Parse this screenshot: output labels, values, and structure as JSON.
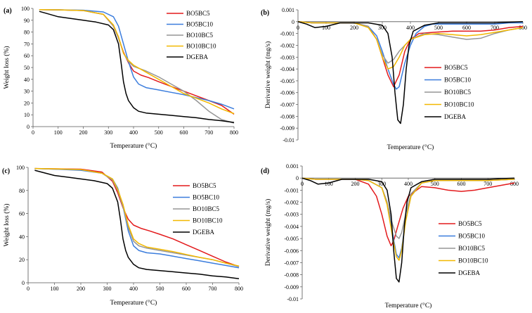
{
  "chart_data": [
    {
      "panel_label": "(a)",
      "type": "line",
      "xlabel": "Temperature (°C)",
      "ylabel": "Weight loss (%)",
      "xlim": [
        0,
        800
      ],
      "ylim": [
        0,
        100
      ],
      "xticks": [
        "0",
        "100",
        "200",
        "300",
        "400",
        "500",
        "600",
        "700",
        "800"
      ],
      "yticks": [
        "0",
        "10",
        "20",
        "30",
        "40",
        "50",
        "60",
        "70",
        "80",
        "90",
        "100"
      ],
      "legend_position": "right",
      "series": [
        {
          "name": "BO5BC5",
          "color": "#e31a1c",
          "x": [
            25,
            100,
            200,
            280,
            320,
            340,
            360,
            380,
            400,
            430,
            460,
            500,
            550,
            600,
            650,
            700,
            750,
            800
          ],
          "y": [
            99,
            98.8,
            98.2,
            95,
            85,
            75,
            63,
            54,
            47,
            43.5,
            41.5,
            38,
            34,
            30,
            26,
            22,
            18,
            10.5
          ]
        },
        {
          "name": "BO5BC10",
          "color": "#3b7ddd",
          "x": [
            25,
            100,
            200,
            280,
            320,
            340,
            360,
            380,
            400,
            420,
            450,
            500,
            550,
            600,
            650,
            700,
            750,
            800
          ],
          "y": [
            99,
            98.8,
            98.5,
            97,
            93,
            85,
            70,
            55,
            42,
            36,
            33,
            31,
            29,
            27,
            24.5,
            22,
            19,
            15
          ]
        },
        {
          "name": "BO10BC5",
          "color": "#969696",
          "x": [
            25,
            100,
            200,
            280,
            320,
            340,
            360,
            380,
            400,
            450,
            500,
            550,
            600,
            650,
            700,
            750,
            800
          ],
          "y": [
            99,
            98.8,
            98.2,
            95,
            85,
            75,
            62,
            55,
            51,
            47,
            42,
            36,
            30,
            22,
            13,
            6,
            3
          ]
        },
        {
          "name": "BO10BC10",
          "color": "#f2b800",
          "x": [
            25,
            100,
            200,
            280,
            320,
            340,
            360,
            380,
            400,
            450,
            500,
            550,
            600,
            650,
            700,
            750,
            800
          ],
          "y": [
            99,
            98.8,
            98.2,
            95,
            86,
            76,
            62,
            56,
            52,
            46,
            40,
            34,
            28,
            24,
            20,
            15,
            11
          ]
        },
        {
          "name": "DGEBA",
          "color": "#000000",
          "x": [
            25,
            50,
            100,
            150,
            200,
            250,
            300,
            320,
            340,
            350,
            360,
            370,
            380,
            400,
            420,
            450,
            500,
            550,
            600,
            650,
            700,
            750,
            800
          ],
          "y": [
            97.5,
            96,
            93,
            91.5,
            90,
            88.5,
            86,
            82,
            70,
            55,
            38,
            28,
            22,
            16,
            13,
            11.5,
            10.5,
            9.5,
            8.5,
            7.5,
            6,
            5,
            3.5
          ]
        }
      ]
    },
    {
      "panel_label": "(b)",
      "type": "line",
      "xlabel": "Temperature (°C)",
      "ylabel": "Derivative weight (mg/s)",
      "xlim": [
        0,
        800
      ],
      "ylim": [
        -0.01,
        0.001
      ],
      "xticks": [
        "0",
        "100",
        "200",
        "300",
        "400",
        "500",
        "600",
        "700",
        "800"
      ],
      "yticks": [
        "0.001",
        "0",
        "-0.001",
        "-0.002",
        "-0.003",
        "-0.004",
        "-0.005",
        "-0.006",
        "-0.007",
        "-0.008",
        "-0.009",
        "-0.01"
      ],
      "legend_position": "lower-right",
      "series": [
        {
          "name": "BO5BC5",
          "color": "#e31a1c",
          "x": [
            0,
            50,
            100,
            200,
            250,
            280,
            300,
            320,
            340,
            360,
            380,
            400,
            430,
            480,
            550,
            600,
            650,
            700,
            750,
            800
          ],
          "y": [
            0,
            -0.0001,
            -0.0001,
            -0.0001,
            -0.0004,
            -0.0015,
            -0.003,
            -0.0045,
            -0.0055,
            -0.0045,
            -0.0025,
            -0.0015,
            -0.001,
            -0.0009,
            -0.0008,
            -0.0008,
            -0.0008,
            -0.0007,
            -0.0005,
            -0.0004
          ]
        },
        {
          "name": "BO5BC10",
          "color": "#3b7ddd",
          "x": [
            0,
            50,
            100,
            200,
            250,
            280,
            300,
            320,
            340,
            350,
            360,
            370,
            380,
            400,
            420,
            450,
            480,
            550,
            600,
            650,
            700,
            750,
            800
          ],
          "y": [
            0,
            -0.0001,
            -0.0001,
            -0.0001,
            -0.0004,
            -0.0012,
            -0.0025,
            -0.004,
            -0.0053,
            -0.0057,
            -0.0055,
            -0.0045,
            -0.0035,
            -0.002,
            -0.001,
            -0.0004,
            -0.0002,
            -0.0002,
            -0.0002,
            -0.0002,
            -0.0002,
            -0.0001,
            -0.0001
          ]
        },
        {
          "name": "BO10BC5",
          "color": "#969696",
          "x": [
            0,
            50,
            100,
            200,
            250,
            280,
            300,
            320,
            340,
            360,
            380,
            400,
            450,
            500,
            550,
            600,
            650,
            700,
            750,
            800
          ],
          "y": [
            0,
            -0.0001,
            -0.0001,
            -0.0001,
            -0.0004,
            -0.0015,
            -0.0028,
            -0.0035,
            -0.0032,
            -0.0025,
            -0.002,
            -0.0015,
            -0.001,
            -0.0011,
            -0.0013,
            -0.0015,
            -0.0014,
            -0.001,
            -0.0007,
            -0.0005
          ]
        },
        {
          "name": "BO10BC10",
          "color": "#f2b800",
          "x": [
            0,
            50,
            100,
            200,
            250,
            280,
            300,
            320,
            340,
            360,
            380,
            400,
            450,
            500,
            550,
            600,
            650,
            700,
            750,
            800
          ],
          "y": [
            0,
            -0.0001,
            -0.0001,
            -0.0001,
            -0.0005,
            -0.0015,
            -0.003,
            -0.004,
            -0.0038,
            -0.003,
            -0.002,
            -0.0015,
            -0.0011,
            -0.001,
            -0.0011,
            -0.0012,
            -0.0011,
            -0.0009,
            -0.0007,
            -0.0005
          ]
        },
        {
          "name": "DGEBA",
          "color": "#000000",
          "x": [
            0,
            30,
            60,
            100,
            150,
            200,
            250,
            300,
            320,
            335,
            345,
            355,
            365,
            375,
            385,
            395,
            410,
            450,
            500,
            600,
            700,
            800
          ],
          "y": [
            0,
            -0.0002,
            -0.0005,
            -0.0004,
            -0.0001,
            -0.0001,
            -0.0001,
            -0.0003,
            -0.001,
            -0.003,
            -0.006,
            -0.0083,
            -0.0086,
            -0.007,
            -0.004,
            -0.002,
            -0.0008,
            -0.0003,
            -0.0001,
            -0.0001,
            -0.0001,
            0
          ]
        }
      ]
    },
    {
      "panel_label": "(c)",
      "type": "line",
      "xlabel": "Temperature (°C)",
      "ylabel": "Weight loss (%)",
      "xlim": [
        0,
        800
      ],
      "ylim": [
        0,
        100
      ],
      "xticks": [
        "0",
        "100",
        "200",
        "300",
        "400",
        "500",
        "600",
        "700",
        "800"
      ],
      "yticks": [
        "0",
        "20",
        "40",
        "60",
        "80",
        "100"
      ],
      "legend_position": "right",
      "series": [
        {
          "name": "BO5BC5",
          "color": "#e31a1c",
          "x": [
            25,
            100,
            200,
            280,
            320,
            340,
            360,
            380,
            400,
            430,
            460,
            500,
            550,
            600,
            650,
            700,
            750,
            800
          ],
          "y": [
            99,
            98.8,
            98.5,
            96,
            88,
            78,
            65,
            55,
            50,
            47,
            45,
            42,
            38,
            33,
            28,
            23,
            18,
            14
          ]
        },
        {
          "name": "BO5BC10",
          "color": "#3b7ddd",
          "x": [
            25,
            100,
            200,
            280,
            320,
            340,
            360,
            380,
            400,
            420,
            450,
            500,
            550,
            600,
            650,
            700,
            750,
            800
          ],
          "y": [
            99,
            98.5,
            97.5,
            95,
            90,
            82,
            66,
            45,
            32,
            28,
            26,
            25,
            23,
            21,
            19,
            17,
            15,
            13
          ]
        },
        {
          "name": "BO10BC5",
          "color": "#969696",
          "x": [
            25,
            100,
            200,
            280,
            320,
            340,
            360,
            380,
            400,
            420,
            450,
            500,
            550,
            600,
            650,
            700,
            750,
            800
          ],
          "y": [
            99,
            98.5,
            98,
            95,
            89,
            80,
            66,
            48,
            36,
            32,
            30,
            28,
            26,
            24,
            22,
            20,
            17,
            14
          ]
        },
        {
          "name": "BO10BC10",
          "color": "#f2b800",
          "x": [
            25,
            100,
            200,
            280,
            320,
            340,
            360,
            380,
            400,
            420,
            450,
            500,
            550,
            600,
            650,
            700,
            750,
            800
          ],
          "y": [
            99,
            98.8,
            98.2,
            95,
            90,
            81,
            68,
            50,
            38,
            34,
            31,
            29,
            27,
            24.5,
            22,
            20,
            17,
            14.5
          ]
        },
        {
          "name": "DGEBA",
          "color": "#000000",
          "x": [
            25,
            50,
            100,
            150,
            200,
            250,
            300,
            320,
            340,
            350,
            360,
            370,
            380,
            400,
            420,
            450,
            500,
            550,
            600,
            650,
            700,
            750,
            800
          ],
          "y": [
            97.5,
            96,
            93,
            91.5,
            90,
            88.5,
            86,
            82,
            70,
            55,
            38,
            28,
            22,
            16,
            13,
            11.5,
            10.5,
            9.5,
            8.5,
            7.5,
            6,
            5,
            3.5
          ]
        }
      ]
    },
    {
      "panel_label": "(d)",
      "type": "line",
      "xlabel": "Temperature (°C)",
      "ylabel": "Derivative weight (mg/s)",
      "xlim": [
        0,
        800
      ],
      "ylim": [
        -0.01,
        0.001
      ],
      "xticks": [
        "0",
        "100",
        "200",
        "300",
        "400",
        "500",
        "600",
        "700",
        "800"
      ],
      "yticks": [
        "0.001",
        "0",
        "-0.001",
        "-0.002",
        "-0.003",
        "-0.004",
        "-0.005",
        "-0.006",
        "-0.007",
        "-0.008",
        "-0.009",
        "-0.01"
      ],
      "legend_position": "lower-right",
      "series": [
        {
          "name": "BO5BC5",
          "color": "#e31a1c",
          "x": [
            0,
            50,
            100,
            200,
            250,
            280,
            300,
            320,
            335,
            345,
            360,
            380,
            400,
            450,
            500,
            550,
            600,
            650,
            700,
            750,
            800
          ],
          "y": [
            0,
            -0.0001,
            -0.0001,
            -0.0001,
            -0.0005,
            -0.0015,
            -0.003,
            -0.0048,
            -0.0056,
            -0.0052,
            -0.004,
            -0.0025,
            -0.0015,
            -0.0007,
            -0.0008,
            -0.001,
            -0.0011,
            -0.001,
            -0.0008,
            -0.0006,
            -0.0004
          ]
        },
        {
          "name": "BO5BC10",
          "color": "#3b7ddd",
          "x": [
            0,
            50,
            100,
            200,
            250,
            300,
            320,
            340,
            355,
            365,
            375,
            390,
            410,
            450,
            500,
            600,
            700,
            800
          ],
          "y": [
            0,
            -0.0001,
            -0.0001,
            -0.0001,
            -0.0002,
            -0.0008,
            -0.002,
            -0.0045,
            -0.0063,
            -0.0066,
            -0.0058,
            -0.0035,
            -0.0015,
            -0.0004,
            -0.0002,
            -0.0002,
            -0.0002,
            -0.0001
          ]
        },
        {
          "name": "BO10BC5",
          "color": "#969696",
          "x": [
            0,
            50,
            100,
            200,
            250,
            300,
            320,
            340,
            355,
            365,
            375,
            390,
            410,
            450,
            500,
            600,
            700,
            800
          ],
          "y": [
            0,
            -0.0001,
            -0.0001,
            -0.0001,
            -0.0002,
            -0.0008,
            -0.002,
            -0.0038,
            -0.0048,
            -0.005,
            -0.0045,
            -0.003,
            -0.0013,
            -0.0004,
            -0.0002,
            -0.0002,
            -0.0002,
            -0.0001
          ]
        },
        {
          "name": "BO10BC10",
          "color": "#f2b800",
          "x": [
            0,
            50,
            100,
            200,
            250,
            300,
            320,
            340,
            355,
            365,
            375,
            390,
            410,
            450,
            500,
            600,
            700,
            800
          ],
          "y": [
            0,
            -0.0001,
            -0.0001,
            -0.0001,
            -0.0002,
            -0.0008,
            -0.0022,
            -0.0048,
            -0.0065,
            -0.0068,
            -0.006,
            -0.0036,
            -0.0015,
            -0.0004,
            -0.0002,
            -0.0002,
            -0.0002,
            -0.0001
          ]
        },
        {
          "name": "DGEBA",
          "color": "#000000",
          "x": [
            0,
            30,
            60,
            100,
            150,
            200,
            250,
            300,
            320,
            335,
            345,
            355,
            365,
            375,
            385,
            395,
            410,
            450,
            500,
            600,
            700,
            800
          ],
          "y": [
            0,
            -0.0002,
            -0.0005,
            -0.0004,
            -0.0001,
            -0.0001,
            -0.0001,
            -0.0003,
            -0.001,
            -0.003,
            -0.006,
            -0.0083,
            -0.0086,
            -0.007,
            -0.004,
            -0.002,
            -0.0008,
            -0.0003,
            -0.0001,
            -0.0001,
            -0.0001,
            0
          ]
        }
      ]
    }
  ]
}
